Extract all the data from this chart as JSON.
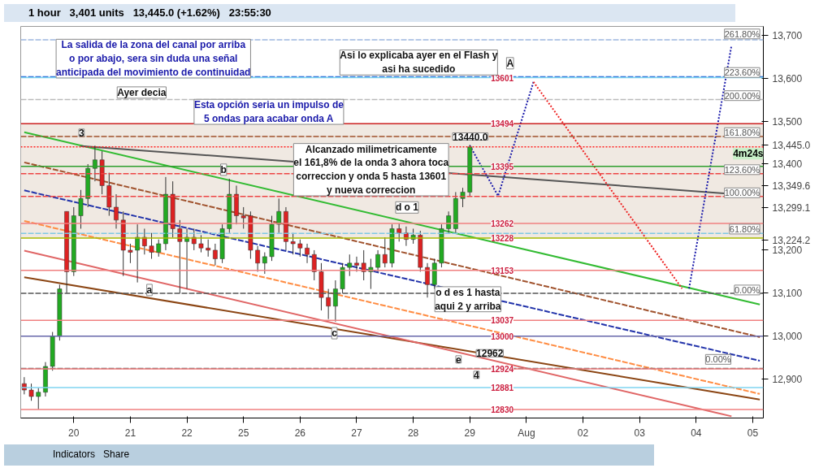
{
  "chart_data": {
    "type": "candlestick",
    "categories": [
      null,
      null,
      null,
      null,
      null,
      null,
      null,
      "20",
      null,
      null,
      null,
      null,
      null,
      null,
      null,
      "21",
      null,
      null,
      null,
      null,
      null,
      null,
      null,
      "22",
      null,
      null,
      null,
      null,
      null,
      null,
      null,
      "25",
      null,
      null,
      null,
      null,
      null,
      null,
      null,
      "26",
      null,
      null,
      null,
      null,
      null,
      null,
      null,
      "27",
      null,
      null,
      null,
      null,
      null,
      null,
      null,
      "28",
      null,
      null,
      null,
      null,
      null,
      null,
      null,
      "29",
      null,
      null,
      null,
      null,
      null,
      null,
      null,
      "Aug",
      null,
      null,
      null,
      null,
      null,
      null,
      null,
      "02",
      null,
      null,
      null,
      null,
      null,
      null,
      null,
      "03",
      null,
      null,
      null,
      null,
      null,
      null,
      null,
      "04",
      null,
      null,
      null,
      null,
      null,
      null,
      null,
      "05",
      null
    ],
    "ohlc": [
      [
        12890,
        12905,
        12865,
        12875
      ],
      [
        12875,
        12890,
        12850,
        12860
      ],
      [
        12860,
        12880,
        12830,
        12870
      ],
      [
        12870,
        12940,
        12860,
        12930
      ],
      [
        12930,
        13010,
        12920,
        13000
      ],
      [
        13000,
        13120,
        12990,
        13110
      ],
      [
        13290,
        13290,
        13100,
        13150
      ],
      [
        13150,
        13300,
        13140,
        13280
      ],
      [
        13280,
        13340,
        13250,
        13320
      ],
      [
        13320,
        13400,
        13300,
        13390
      ],
      [
        13390,
        13443,
        13360,
        13410
      ],
      [
        13410,
        13430,
        13330,
        13350
      ],
      [
        13350,
        13380,
        13280,
        13300
      ],
      [
        13300,
        13330,
        13250,
        13270
      ],
      [
        13270,
        13290,
        13140,
        13200
      ],
      [
        13200,
        13215,
        13170,
        13195
      ],
      [
        13200,
        13260,
        13125,
        13230
      ],
      [
        13230,
        13250,
        13190,
        13210
      ],
      [
        13210,
        13240,
        13180,
        13195
      ],
      [
        13195,
        13225,
        13185,
        13215
      ],
      [
        13215,
        13370,
        13200,
        13330
      ],
      [
        13330,
        13360,
        13230,
        13250
      ],
      [
        13250,
        13270,
        13100,
        13220
      ],
      [
        13220,
        13250,
        13110,
        13230
      ],
      [
        13230,
        13250,
        13200,
        13215
      ],
      [
        13215,
        13235,
        13195,
        13205
      ],
      [
        13205,
        13225,
        13185,
        13200
      ],
      [
        13200,
        13215,
        13165,
        13180
      ],
      [
        13180,
        13260,
        13170,
        13250
      ],
      [
        13250,
        13366,
        13240,
        13330
      ],
      [
        13330,
        13350,
        13260,
        13280
      ],
      [
        13280,
        13300,
        13250,
        13275
      ],
      [
        13280,
        13290,
        13180,
        13200
      ],
      [
        13200,
        13210,
        13150,
        13170
      ],
      [
        13170,
        13195,
        13145,
        13185
      ],
      [
        13185,
        13280,
        13175,
        13260
      ],
      [
        13260,
        13320,
        13240,
        13290
      ],
      [
        13290,
        13300,
        13200,
        13220
      ],
      [
        13220,
        13240,
        13190,
        13215
      ],
      [
        13215,
        13225,
        13185,
        13205
      ],
      [
        13205,
        13215,
        13170,
        13190
      ],
      [
        13190,
        13200,
        13130,
        13150
      ],
      [
        13150,
        13170,
        13060,
        13090
      ],
      [
        13090,
        13110,
        13040,
        13070
      ],
      [
        13070,
        13130,
        13034,
        13110
      ],
      [
        13110,
        13170,
        13100,
        13160
      ],
      [
        13160,
        13190,
        13140,
        13170
      ],
      [
        13170,
        13185,
        13150,
        13165
      ],
      [
        13170,
        13200,
        13130,
        13150
      ],
      [
        13150,
        13180,
        13110,
        13160
      ],
      [
        13160,
        13200,
        13150,
        13190
      ],
      [
        13190,
        13230,
        13160,
        13170
      ],
      [
        13170,
        13260,
        13160,
        13250
      ],
      [
        13250,
        13262,
        13220,
        13240
      ],
      [
        13240,
        13255,
        13210,
        13225
      ],
      [
        13225,
        13250,
        13215,
        13235
      ],
      [
        13235,
        13245,
        13150,
        13160
      ],
      [
        13160,
        13170,
        13090,
        13120
      ],
      [
        13120,
        13180,
        13110,
        13170
      ],
      [
        13170,
        13260,
        13160,
        13250
      ],
      [
        13250,
        13290,
        13240,
        13280
      ],
      [
        13250,
        13335,
        13240,
        13320
      ],
      [
        13320,
        13345,
        13300,
        13335
      ],
      [
        13335,
        13445,
        13325,
        13440
      ],
      null,
      null,
      null,
      null,
      null,
      null,
      null,
      null,
      null,
      null,
      null,
      null,
      null,
      null,
      null,
      null,
      null,
      null,
      null,
      null,
      null,
      null,
      null,
      null,
      null,
      null,
      null,
      null,
      null,
      null,
      null,
      null,
      null,
      null,
      null,
      null,
      null,
      null,
      null,
      null,
      null
    ],
    "series": [
      {
        "type": "line",
        "color": "#33bb33",
        "values": [
          13474,
          null,
          null,
          null,
          null,
          null,
          null,
          null,
          null,
          null,
          null,
          null,
          null,
          null,
          null,
          null,
          null,
          null,
          null,
          null,
          null,
          null,
          null,
          null,
          null,
          null,
          null,
          null,
          null,
          null,
          null,
          null,
          null,
          null,
          null,
          null,
          null,
          null,
          null,
          null,
          null,
          null,
          null,
          null,
          null,
          null,
          null,
          null,
          null,
          null,
          null,
          null,
          null,
          null,
          null,
          null,
          null,
          null,
          null,
          null,
          null,
          null,
          null,
          null,
          null,
          null,
          null,
          null,
          null,
          null,
          null,
          null,
          null,
          null,
          null,
          null,
          null,
          null,
          null,
          null,
          null,
          null,
          null,
          null,
          null,
          null,
          null,
          null,
          null,
          null,
          null,
          null,
          null,
          null,
          null,
          null,
          null,
          null,
          null,
          null,
          null,
          null,
          null,
          null,
          13074
        ]
      },
      {
        "type": "line",
        "color": "#8b4513",
        "values": [
          13137,
          null,
          null,
          null,
          null,
          null,
          null,
          null,
          null,
          null,
          null,
          null,
          null,
          null,
          null,
          null,
          null,
          null,
          null,
          null,
          null,
          null,
          null,
          null,
          null,
          null,
          null,
          null,
          null,
          null,
          null,
          null,
          null,
          null,
          null,
          null,
          null,
          null,
          null,
          null,
          null,
          null,
          null,
          null,
          null,
          null,
          null,
          null,
          null,
          null,
          null,
          null,
          null,
          null,
          null,
          null,
          null,
          null,
          null,
          null,
          null,
          null,
          null,
          null,
          null,
          null,
          null,
          null,
          null,
          null,
          null,
          null,
          null,
          null,
          null,
          null,
          null,
          null,
          null,
          null,
          null,
          null,
          null,
          null,
          null,
          null,
          null,
          null,
          null,
          null,
          null,
          null,
          null,
          null,
          null,
          null,
          null,
          null,
          null,
          null,
          null,
          null,
          null,
          null,
          12853
        ]
      },
      {
        "type": "line",
        "color": "#2233aa",
        "line_style": "dashed",
        "values": [
          13339,
          null,
          null,
          null,
          null,
          null,
          null,
          null,
          null,
          null,
          null,
          null,
          null,
          null,
          null,
          null,
          null,
          null,
          null,
          null,
          null,
          null,
          null,
          null,
          null,
          null,
          null,
          null,
          null,
          null,
          null,
          null,
          null,
          null,
          null,
          null,
          null,
          null,
          null,
          null,
          null,
          null,
          null,
          null,
          null,
          null,
          null,
          null,
          null,
          null,
          null,
          null,
          null,
          null,
          null,
          null,
          null,
          null,
          null,
          null,
          null,
          null,
          null,
          null,
          null,
          null,
          null,
          null,
          null,
          null,
          null,
          null,
          null,
          null,
          null,
          null,
          null,
          null,
          null,
          null,
          null,
          null,
          null,
          null,
          null,
          null,
          null,
          null,
          null,
          null,
          null,
          null,
          null,
          null,
          null,
          null,
          null,
          null,
          null,
          null,
          null,
          null,
          null,
          null,
          12943
        ]
      },
      {
        "type": "line",
        "color": "#a0522d",
        "line_style": "dashed",
        "values": [
          13404,
          null,
          null,
          null,
          null,
          null,
          null,
          null,
          null,
          null,
          null,
          null,
          null,
          null,
          null,
          null,
          null,
          null,
          null,
          null,
          null,
          null,
          null,
          null,
          null,
          null,
          null,
          null,
          null,
          null,
          null,
          null,
          null,
          null,
          null,
          null,
          null,
          null,
          null,
          null,
          null,
          null,
          null,
          null,
          null,
          null,
          null,
          null,
          null,
          null,
          null,
          null,
          null,
          null,
          null,
          null,
          null,
          null,
          null,
          null,
          null,
          null,
          null,
          null,
          null,
          null,
          null,
          null,
          null,
          null,
          null,
          null,
          null,
          null,
          null,
          null,
          null,
          null,
          null,
          null,
          null,
          null,
          null,
          null,
          null,
          null,
          null,
          null,
          null,
          null,
          null,
          null,
          null,
          null,
          null,
          null,
          null,
          null,
          null,
          null,
          null,
          null,
          null,
          null,
          12998
        ]
      },
      {
        "type": "line",
        "color": "#ff8c42",
        "line_style": "dashed",
        "values": [
          13268,
          null,
          null,
          null,
          null,
          null,
          null,
          null,
          null,
          null,
          null,
          null,
          null,
          null,
          null,
          null,
          null,
          null,
          null,
          null,
          null,
          null,
          null,
          null,
          null,
          null,
          null,
          null,
          null,
          null,
          null,
          null,
          null,
          null,
          null,
          null,
          null,
          null,
          null,
          null,
          null,
          null,
          null,
          null,
          null,
          null,
          null,
          null,
          null,
          null,
          null,
          null,
          null,
          null,
          null,
          null,
          null,
          null,
          null,
          null,
          null,
          null,
          null,
          null,
          null,
          null,
          null,
          null,
          null,
          null,
          null,
          null,
          null,
          null,
          null,
          null,
          null,
          null,
          null,
          null,
          null,
          null,
          null,
          null,
          null,
          null,
          null,
          null,
          null,
          null,
          null,
          null,
          null,
          null,
          null,
          null,
          null,
          null,
          null,
          null,
          null,
          null,
          null,
          null,
          12866
        ]
      },
      {
        "type": "line",
        "color": "#e06666",
        "values": [
          13199,
          null,
          null,
          null,
          null,
          null,
          null,
          null,
          null,
          null,
          null,
          null,
          null,
          null,
          null,
          null,
          null,
          null,
          null,
          null,
          null,
          null,
          null,
          null,
          null,
          null,
          null,
          null,
          null,
          null,
          null,
          null,
          null,
          null,
          null,
          null,
          null,
          null,
          null,
          null,
          null,
          null,
          null,
          null,
          null,
          null,
          null,
          null,
          null,
          null,
          null,
          null,
          null,
          null,
          null,
          null,
          null,
          null,
          null,
          null,
          null,
          null,
          null,
          null,
          null,
          null,
          null,
          null,
          null,
          null,
          null,
          null,
          null,
          null,
          null,
          null,
          null,
          null,
          null,
          null,
          null,
          null,
          null,
          null,
          null,
          null,
          null,
          null,
          null,
          null,
          null,
          null,
          null,
          null,
          null,
          null,
          null,
          null,
          null,
          null,
          12814,
          null,
          null,
          null,
          null
        ]
      },
      {
        "type": "line",
        "color": "#555555",
        "values": [
          null,
          null,
          null,
          null,
          null,
          null,
          null,
          null,
          13442,
          null,
          null,
          null,
          null,
          null,
          null,
          null,
          null,
          null,
          null,
          null,
          null,
          null,
          null,
          null,
          null,
          null,
          null,
          null,
          null,
          null,
          null,
          null,
          null,
          null,
          null,
          null,
          null,
          null,
          null,
          null,
          null,
          null,
          null,
          null,
          null,
          null,
          null,
          null,
          null,
          null,
          null,
          null,
          null,
          null,
          null,
          null,
          null,
          null,
          null,
          null,
          null,
          null,
          null,
          null,
          null,
          null,
          null,
          null,
          null,
          null,
          null,
          null,
          null,
          null,
          null,
          null,
          null,
          null,
          null,
          null,
          null,
          null,
          null,
          null,
          null,
          null,
          null,
          null,
          null,
          null,
          null,
          null,
          null,
          null,
          null,
          null,
          null,
          null,
          null,
          null,
          null,
          null,
          null,
          null,
          13326
        ]
      },
      {
        "type": "line",
        "color": "#1a1aaa",
        "line_style": "dotted",
        "values": [
          null,
          null,
          null,
          null,
          null,
          null,
          null,
          null,
          null,
          null,
          null,
          null,
          null,
          null,
          null,
          null,
          null,
          null,
          null,
          null,
          null,
          null,
          null,
          null,
          null,
          null,
          null,
          null,
          null,
          null,
          null,
          null,
          null,
          null,
          null,
          null,
          null,
          null,
          null,
          null,
          null,
          null,
          null,
          null,
          null,
          null,
          null,
          null,
          null,
          null,
          null,
          null,
          null,
          null,
          null,
          null,
          null,
          null,
          null,
          null,
          null,
          null,
          null,
          13443,
          null,
          null,
          null,
          13326,
          null,
          null,
          null,
          null,
          13591,
          null,
          null,
          null,
          null,
          null,
          null,
          null,
          null,
          null,
          null,
          null,
          null,
          null,
          null,
          null,
          null,
          null,
          null,
          null,
          null,
          null,
          null,
          null,
          null,
          null,
          null,
          null,
          null,
          null,
          null,
          null,
          null
        ]
      },
      {
        "type": "line",
        "color": "#ee2222",
        "line_style": "dotted",
        "values": [
          null,
          null,
          null,
          null,
          null,
          null,
          null,
          null,
          null,
          null,
          null,
          null,
          null,
          null,
          null,
          null,
          null,
          null,
          null,
          null,
          null,
          null,
          null,
          null,
          null,
          null,
          null,
          null,
          null,
          null,
          null,
          null,
          null,
          null,
          null,
          null,
          null,
          null,
          null,
          null,
          null,
          null,
          null,
          null,
          null,
          null,
          null,
          null,
          null,
          null,
          null,
          null,
          null,
          null,
          null,
          null,
          null,
          null,
          null,
          null,
          null,
          null,
          null,
          null,
          null,
          null,
          null,
          null,
          null,
          null,
          null,
          null,
          13591,
          null,
          null,
          null,
          null,
          null,
          null,
          null,
          null,
          null,
          null,
          null,
          null,
          null,
          null,
          null,
          null,
          null,
          null,
          null,
          null,
          13111,
          null,
          null,
          null,
          null,
          null,
          null,
          null,
          null,
          null,
          null,
          null
        ]
      },
      {
        "type": "line",
        "color": "#1a1aaa",
        "line_style": "dotted",
        "values": [
          null,
          null,
          null,
          null,
          null,
          null,
          null,
          null,
          null,
          null,
          null,
          null,
          null,
          null,
          null,
          null,
          null,
          null,
          null,
          null,
          null,
          null,
          null,
          null,
          null,
          null,
          null,
          null,
          null,
          null,
          null,
          null,
          null,
          null,
          null,
          null,
          null,
          null,
          null,
          null,
          null,
          null,
          null,
          null,
          null,
          null,
          null,
          null,
          null,
          null,
          null,
          null,
          null,
          null,
          null,
          null,
          null,
          null,
          null,
          null,
          null,
          null,
          null,
          null,
          null,
          null,
          null,
          null,
          null,
          null,
          null,
          null,
          null,
          null,
          null,
          null,
          null,
          null,
          null,
          null,
          null,
          null,
          null,
          null,
          null,
          null,
          null,
          null,
          null,
          null,
          null,
          null,
          null,
          null,
          13111,
          null,
          null,
          null,
          null,
          null,
          13676,
          null,
          null,
          null,
          null
        ]
      }
    ],
    "ylim": [
      12810,
      13720
    ],
    "yticks": [
      {
        "value": 12900,
        "label": "12,900"
      },
      {
        "value": 13000,
        "label": "13,000"
      },
      {
        "value": 13100,
        "label": "13,100"
      },
      {
        "value": 13200,
        "label": "13,200"
      },
      {
        "value": 13224.2,
        "label": "13,224.2"
      },
      {
        "value": 13299.1,
        "label": "13,299.1"
      },
      {
        "value": 13349.6,
        "label": "13,349.6"
      },
      {
        "value": 13400,
        "label": "13,400"
      },
      {
        "value": 13445,
        "label": "13,445.0"
      },
      {
        "value": 13500,
        "label": "13,500"
      },
      {
        "value": 13600,
        "label": "13,600"
      },
      {
        "value": 13700,
        "label": "13,700"
      }
    ],
    "bands": [
      {
        "axis": "y",
        "from": 13228,
        "to": 13494,
        "color": "#eae0d6"
      }
    ],
    "ref_lines": [
      {
        "axis": "y",
        "value": 13689,
        "color": "#9db7e0",
        "line_style": "dashed"
      },
      {
        "axis": "y",
        "value": 13603,
        "color": "#1f5fd6",
        "line_style": "dashed"
      },
      {
        "axis": "y",
        "value": 13550,
        "color": "#bbbbbb",
        "line_style": "dashed"
      },
      {
        "axis": "y",
        "value": 13464,
        "color": "#a0522d",
        "line_style": "dashed"
      },
      {
        "axis": "y",
        "value": 13378,
        "color": "#ee4444",
        "line_style": "dashed"
      },
      {
        "axis": "y",
        "value": 13325,
        "color": "#ee4444",
        "line_style": "dashed"
      },
      {
        "axis": "y",
        "value": 13239,
        "color": "#7ec8e3",
        "line_style": "dashed"
      },
      {
        "axis": "y",
        "value": 13100,
        "color": "#555555",
        "line_style": "dashed"
      },
      {
        "axis": "y",
        "value": 12925,
        "color": "#555555",
        "line_style": "dashed"
      },
      {
        "axis": "y",
        "value": 13601,
        "label": "13601",
        "color": "#7fd4f0"
      },
      {
        "axis": "y",
        "value": 13494,
        "label": "13494",
        "color": "#cc2222"
      },
      {
        "axis": "y",
        "value": 13440,
        "color": "#ff2222",
        "line_style": "dotted"
      },
      {
        "axis": "y",
        "value": 13395,
        "label": "13395",
        "color": "#2e9e2e"
      },
      {
        "axis": "y",
        "value": 13262,
        "label": "13262",
        "color": "#f08080"
      },
      {
        "axis": "y",
        "value": 13228,
        "label": "13228",
        "color": "#aabb00"
      },
      {
        "axis": "y",
        "value": 13153,
        "label": "13153",
        "color": "#f08080"
      },
      {
        "axis": "y",
        "value": 13037,
        "label": "13037",
        "color": "#f08080"
      },
      {
        "axis": "y",
        "value": 13000,
        "label": "13000",
        "color": "#6666aa"
      },
      {
        "axis": "y",
        "value": 12924,
        "label": "12924",
        "color": "#f08080"
      },
      {
        "axis": "y",
        "value": 12881,
        "label": "12881",
        "color": "#7fd4f0"
      },
      {
        "axis": "y",
        "value": 12830,
        "label": "12830",
        "color": "#f08080"
      }
    ],
    "annotations": [
      "La salida de la zona del canal por arriba\no por abajo, sera sin duda una señal\nanticipada del movimiento de continuidad",
      "Ayer decia",
      "Esta opción seria un impulso de\n5 ondas para acabar onda A",
      "Asi lo explicaba ayer en el Flash y\nasi ha sucedido",
      "Alcanzado milimetricamente\nel 161,8% de la onda 3 ahora toca\ncorreccion y onda 5 hasta 13601\ny nueva correccion",
      "o d es 1 hasta\naqui 2 y arriba",
      "12962",
      "3",
      "a",
      "b",
      "c",
      "d o 1",
      "e",
      "4",
      "A",
      "13440.0",
      "261.80%",
      "223.60%",
      "200.00%",
      "161.80%",
      "123.60%",
      "100.00%",
      "61.80%",
      "0.00%",
      "0.00%",
      "4m24s",
      "1 hour",
      "3,401 units",
      "13,445.0 (+1.62%)",
      "23:55:30",
      "Indicators",
      "Share"
    ]
  }
}
